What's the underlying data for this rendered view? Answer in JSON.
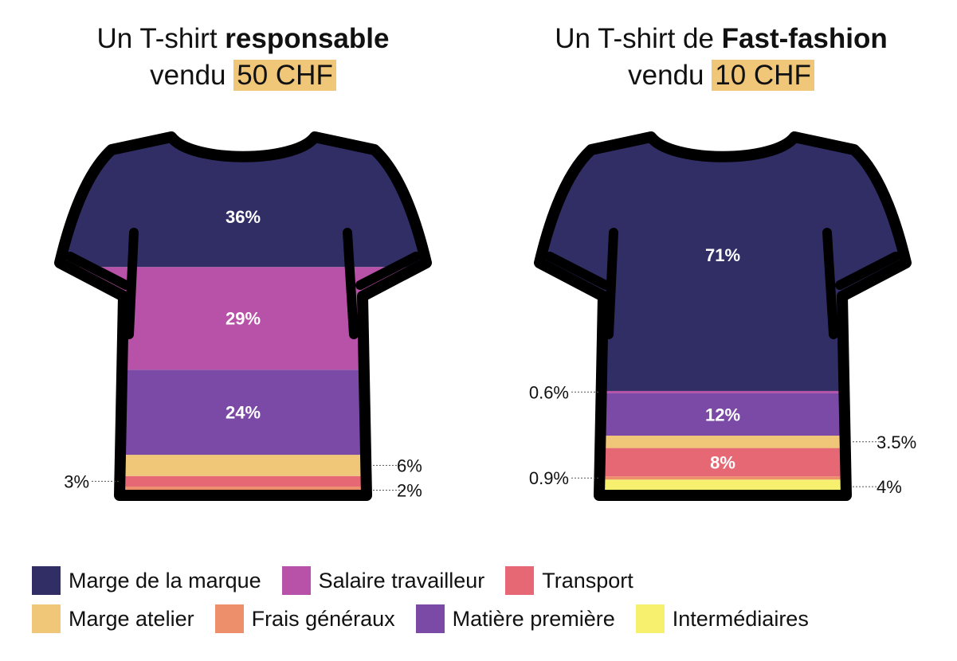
{
  "chart_data": [
    {
      "type": "stacked-bar",
      "title_prefix": "Un T-shirt ",
      "title_bold": "responsable",
      "subtitle_prefix": "vendu ",
      "price": "50 CHF",
      "segments": [
        {
          "name": "Marge de la marque",
          "value": 36,
          "label": "36%"
        },
        {
          "name": "Salaire travailleur",
          "value": 29,
          "label": "29%"
        },
        {
          "name": "Matière première",
          "value": 24,
          "label": "24%"
        },
        {
          "name": "Marge atelier",
          "value": 6,
          "label": "6%"
        },
        {
          "name": "Transport",
          "value": 3,
          "label": "3%"
        },
        {
          "name": "Frais généraux",
          "value": 2,
          "label": "2%"
        }
      ]
    },
    {
      "type": "stacked-bar",
      "title_prefix": "Un T-shirt de ",
      "title_bold": "Fast-fashion",
      "subtitle_prefix": "vendu ",
      "price": "10 CHF",
      "segments": [
        {
          "name": "Marge de la marque",
          "value": 71,
          "label": "71%"
        },
        {
          "name": "Salaire travailleur",
          "value": 0.6,
          "label": "0.6%"
        },
        {
          "name": "Matière première",
          "value": 12,
          "label": "12%"
        },
        {
          "name": "Marge atelier",
          "value": 3.5,
          "label": "3.5%"
        },
        {
          "name": "Transport",
          "value": 8,
          "label": "8%"
        },
        {
          "name": "Frais généraux",
          "value": 0.9,
          "label": "0.9%"
        },
        {
          "name": "Intermédiaires",
          "value": 4,
          "label": "4%"
        }
      ]
    }
  ],
  "colors": {
    "Marge de la marque": "#312e66",
    "Salaire travailleur": "#b852a8",
    "Transport": "#e66875",
    "Marge atelier": "#f0c678",
    "Frais généraux": "#ec8f6a",
    "Matière première": "#7a4aa6",
    "Intermédiaires": "#f6f06e"
  },
  "legend": [
    [
      "Marge de la marque",
      "Salaire travailleur",
      "Transport"
    ],
    [
      "Marge atelier",
      "Frais généraux",
      "Matière première",
      "Intermédiaires"
    ]
  ]
}
